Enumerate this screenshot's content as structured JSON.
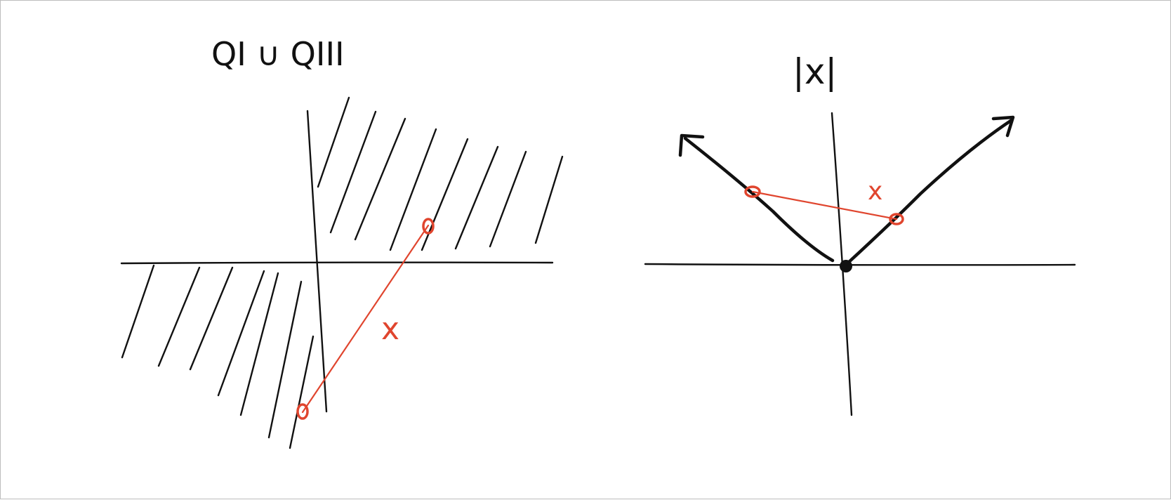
{
  "left_panel": {
    "title": "QI ∪ QIII",
    "segment_label": "x"
  },
  "right_panel": {
    "title": "|x|",
    "segment_label": "x"
  },
  "colors": {
    "ink": "#111111",
    "accent": "#e0452e",
    "background": "#ffffff"
  }
}
